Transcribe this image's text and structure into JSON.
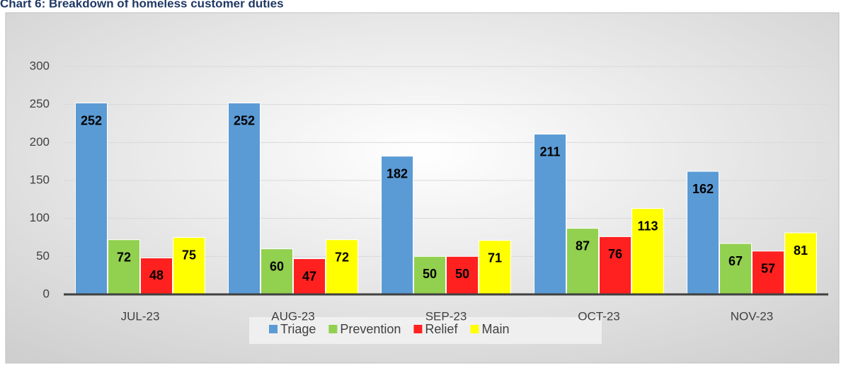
{
  "chart_data": {
    "type": "bar",
    "title": "Chart 6: Breakdown of homeless customer duties",
    "categories": [
      "JUL-23",
      "AUG-23",
      "SEP-23",
      "OCT-23",
      "NOV-23"
    ],
    "series": [
      {
        "name": "Triage",
        "color": "#5b9bd5",
        "values": [
          252,
          252,
          182,
          211,
          162
        ]
      },
      {
        "name": "Prevention",
        "color": "#92d050",
        "values": [
          72,
          60,
          50,
          87,
          67
        ]
      },
      {
        "name": "Relief",
        "color": "#ff2020",
        "values": [
          48,
          47,
          50,
          76,
          57
        ]
      },
      {
        "name": "Main",
        "color": "#ffff00",
        "values": [
          75,
          72,
          71,
          113,
          81
        ]
      }
    ],
    "ylim": [
      0,
      300
    ],
    "yticks": [
      0,
      50,
      100,
      150,
      200,
      250,
      300
    ],
    "grid": true,
    "legend": "bottom"
  }
}
